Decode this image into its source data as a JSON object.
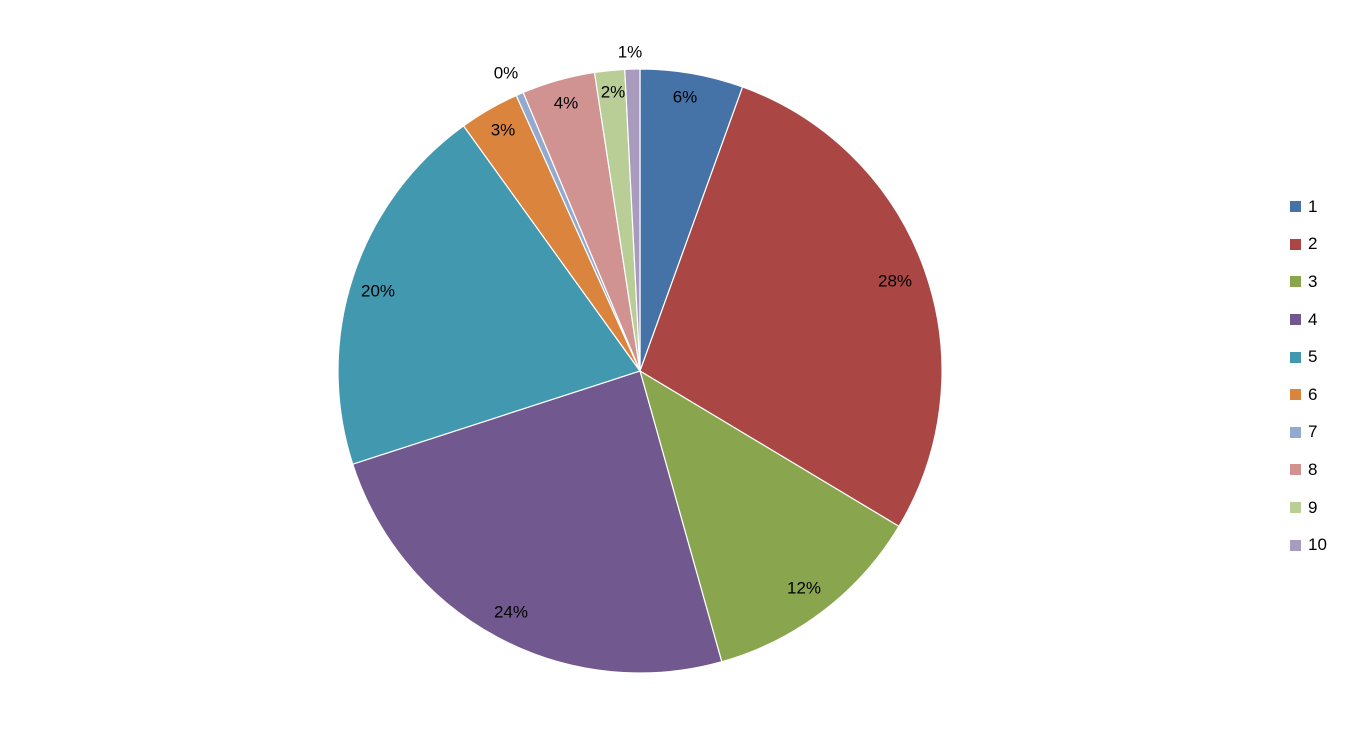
{
  "chart_data": {
    "type": "pie",
    "categories": [
      "1",
      "2",
      "3",
      "4",
      "5",
      "6",
      "7",
      "8",
      "9",
      "10"
    ],
    "values": [
      5.5,
      28.0,
      12.0,
      24.3,
      20.0,
      3.2,
      0.4,
      3.9,
      1.6,
      0.8
    ],
    "labels": [
      "6%",
      "28%",
      "12%",
      "24%",
      "20%",
      "3%",
      "0%",
      "4%",
      "2%",
      "1%"
    ],
    "colors": [
      "#4572A7",
      "#AA4643",
      "#89A54E",
      "#71588F",
      "#4198AF",
      "#DB843D",
      "#93A9CF",
      "#D19392",
      "#B9CD96",
      "#A99BBD"
    ],
    "title": "",
    "legend_position": "right",
    "start_angle_deg": 0,
    "direction": "clockwise"
  }
}
